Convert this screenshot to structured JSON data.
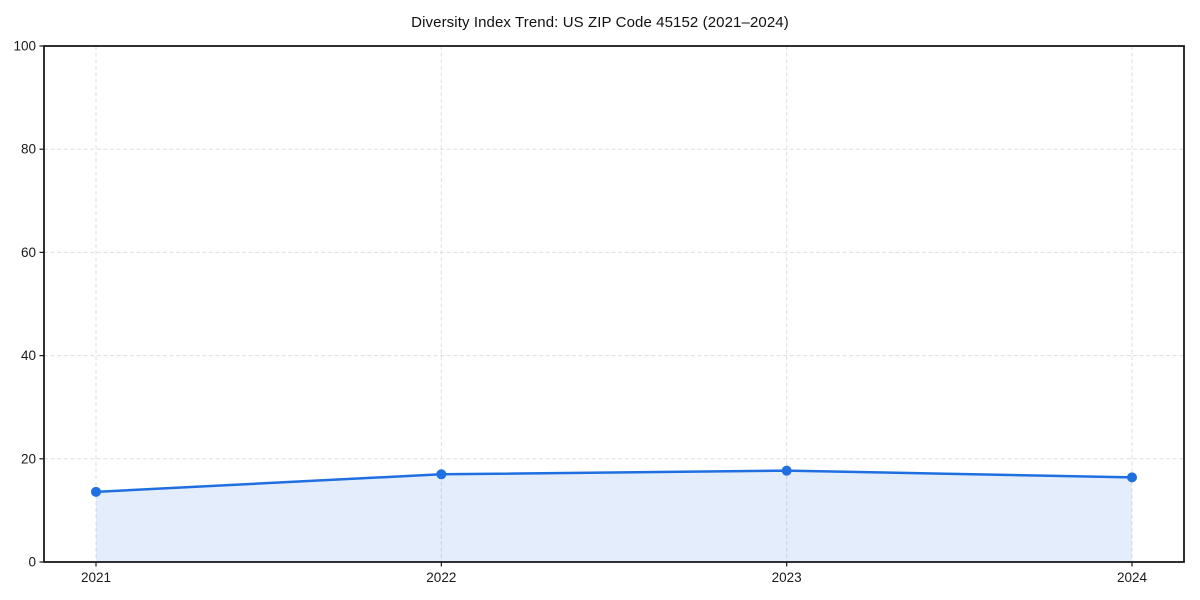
{
  "chart_data": {
    "type": "line",
    "title": "Diversity Index Trend: US ZIP Code 45152 (2021–2024)",
    "x_categories": [
      "2021",
      "2022",
      "2023",
      "2024"
    ],
    "series": [
      {
        "name": "Diversity Index",
        "values": [
          13.6,
          17.0,
          17.7,
          16.4
        ]
      }
    ],
    "xlabel": "",
    "ylabel": "",
    "ylim": [
      0,
      100
    ],
    "yticks": [
      0,
      20,
      40,
      60,
      80,
      100
    ],
    "grid": "dashed-both-axes",
    "legend_position": "none",
    "line_color": "#1f6fe0",
    "fill_color": "rgba(31,111,224,0.12)",
    "marker": "circle",
    "axis_color": "#1a1a1a",
    "grid_color": "#dedede",
    "background_color": "#ffffff"
  }
}
